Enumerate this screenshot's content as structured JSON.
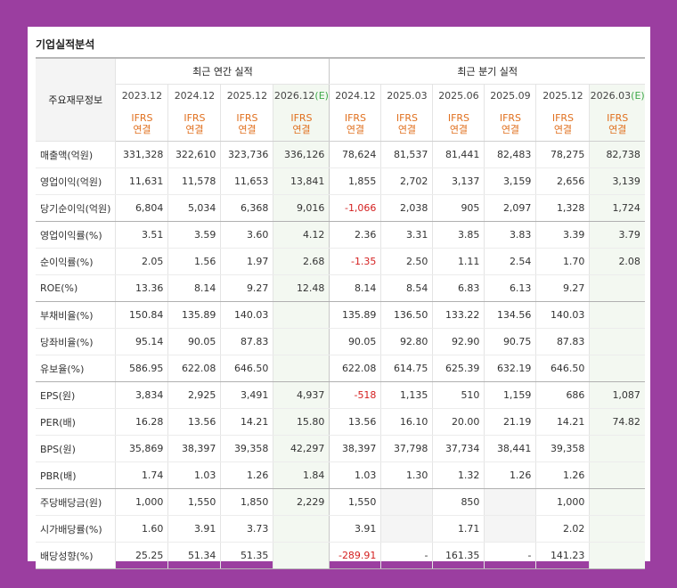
{
  "title": "기업실적분석",
  "corner_label": "주요재무정보",
  "group_annual": "최근 연간 실적",
  "group_quarter": "최근 분기 실적",
  "columns": [
    {
      "date": "2023.12",
      "estimate": false
    },
    {
      "date": "2024.12",
      "estimate": false
    },
    {
      "date": "2025.12",
      "estimate": false
    },
    {
      "date": "2026.12",
      "estimate": true
    },
    {
      "date": "2024.12",
      "estimate": false
    },
    {
      "date": "2025.03",
      "estimate": false
    },
    {
      "date": "2025.06",
      "estimate": false
    },
    {
      "date": "2025.09",
      "estimate": false
    },
    {
      "date": "2025.12",
      "estimate": false
    },
    {
      "date": "2026.03",
      "estimate": true
    }
  ],
  "estimate_mark": "(E)",
  "ifrs_line1": "IFRS",
  "ifrs_line2": "연결",
  "rows": [
    {
      "label": "매출액(억원)",
      "values": [
        "331,328",
        "322,610",
        "323,736",
        "336,126",
        "78,624",
        "81,537",
        "81,441",
        "82,483",
        "78,275",
        "82,738"
      ]
    },
    {
      "label": "영업이익(억원)",
      "values": [
        "11,631",
        "11,578",
        "11,653",
        "13,841",
        "1,855",
        "2,702",
        "3,137",
        "3,159",
        "2,656",
        "3,139"
      ]
    },
    {
      "label": "당기순이익(억원)",
      "values": [
        "6,804",
        "5,034",
        "6,368",
        "9,016",
        "-1,066",
        "2,038",
        "905",
        "2,097",
        "1,328",
        "1,724"
      ],
      "sep": true
    },
    {
      "label": "영업이익률(%)",
      "values": [
        "3.51",
        "3.59",
        "3.60",
        "4.12",
        "2.36",
        "3.31",
        "3.85",
        "3.83",
        "3.39",
        "3.79"
      ]
    },
    {
      "label": "순이익률(%)",
      "values": [
        "2.05",
        "1.56",
        "1.97",
        "2.68",
        "-1.35",
        "2.50",
        "1.11",
        "2.54",
        "1.70",
        "2.08"
      ]
    },
    {
      "label": "ROE(%)",
      "values": [
        "13.36",
        "8.14",
        "9.27",
        "12.48",
        "8.14",
        "8.54",
        "6.83",
        "6.13",
        "9.27",
        ""
      ],
      "sep": true
    },
    {
      "label": "부채비율(%)",
      "values": [
        "150.84",
        "135.89",
        "140.03",
        "",
        "135.89",
        "136.50",
        "133.22",
        "134.56",
        "140.03",
        ""
      ]
    },
    {
      "label": "당좌비율(%)",
      "values": [
        "95.14",
        "90.05",
        "87.83",
        "",
        "90.05",
        "92.80",
        "92.90",
        "90.75",
        "87.83",
        ""
      ]
    },
    {
      "label": "유보율(%)",
      "values": [
        "586.95",
        "622.08",
        "646.50",
        "",
        "622.08",
        "614.75",
        "625.39",
        "632.19",
        "646.50",
        ""
      ],
      "sep": true
    },
    {
      "label": "EPS(원)",
      "values": [
        "3,834",
        "2,925",
        "3,491",
        "4,937",
        "-518",
        "1,135",
        "510",
        "1,159",
        "686",
        "1,087"
      ]
    },
    {
      "label": "PER(배)",
      "values": [
        "16.28",
        "13.56",
        "14.21",
        "15.80",
        "13.56",
        "16.10",
        "20.00",
        "21.19",
        "14.21",
        "74.82"
      ]
    },
    {
      "label": "BPS(원)",
      "values": [
        "35,869",
        "38,397",
        "39,358",
        "42,297",
        "38,397",
        "37,798",
        "37,734",
        "38,441",
        "39,358",
        ""
      ]
    },
    {
      "label": "PBR(배)",
      "values": [
        "1.74",
        "1.03",
        "1.26",
        "1.84",
        "1.03",
        "1.30",
        "1.32",
        "1.26",
        "1.26",
        ""
      ],
      "sep": true
    },
    {
      "label": "주당배당금(원)",
      "values": [
        "1,000",
        "1,550",
        "1,850",
        "2,229",
        "1,550",
        "",
        "850",
        "",
        "1,000",
        ""
      ],
      "gaps": [
        5,
        7
      ]
    },
    {
      "label": "시가배당률(%)",
      "values": [
        "1.60",
        "3.91",
        "3.73",
        "",
        "3.91",
        "",
        "1.71",
        "",
        "2.02",
        ""
      ],
      "gaps": [
        5,
        7
      ]
    },
    {
      "label": "배당성향(%)",
      "values": [
        "25.25",
        "51.34",
        "51.35",
        "",
        "-289.91",
        "-",
        "161.35",
        "-",
        "141.23",
        ""
      ]
    }
  ]
}
